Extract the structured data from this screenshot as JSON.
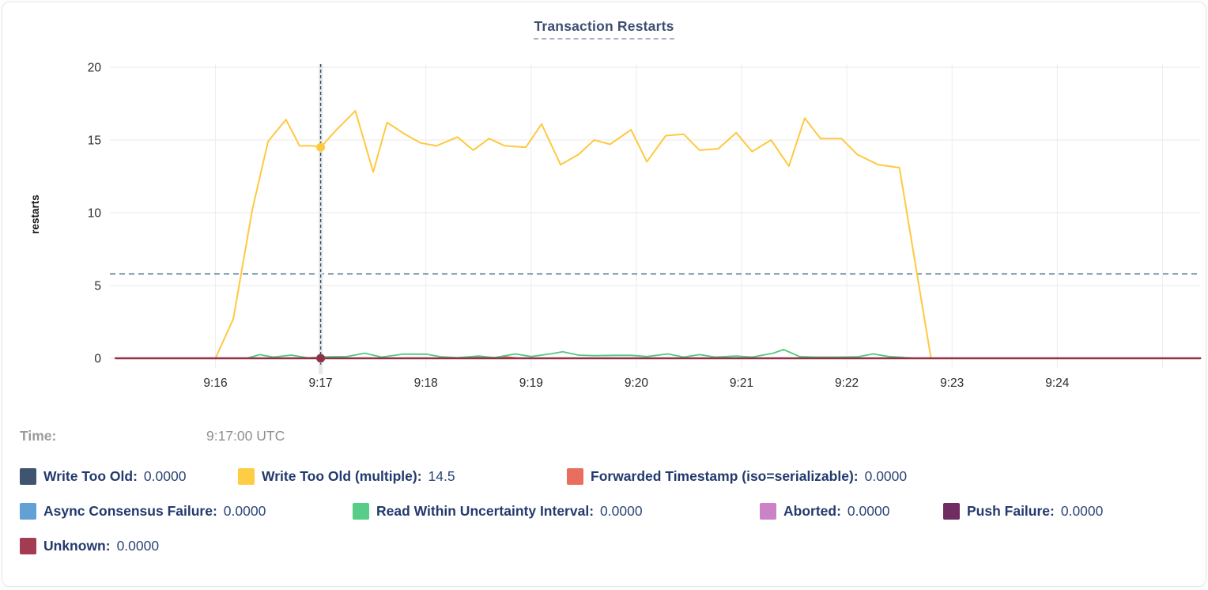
{
  "title": "Transaction Restarts",
  "tooltip": {
    "time_label": "Time:",
    "time_value": "9:17:00 UTC"
  },
  "legend": {
    "rows": [
      [
        {
          "label": "Write Too Old:",
          "value": "0.0000",
          "color": "#3f546e"
        },
        {
          "label": "Write Too Old (multiple):",
          "value": "14.5",
          "color": "#ffcd44"
        },
        {
          "label": "Forwarded Timestamp (iso=serializable):",
          "value": "0.0000",
          "color": "#e96e5e"
        }
      ],
      [
        {
          "label": "Async Consensus Failure:",
          "value": "0.0000",
          "color": "#61a1d6"
        },
        {
          "label": "Read Within Uncertainty Interval:",
          "value": "0.0000",
          "color": "#57cd87"
        },
        {
          "label": "Aborted:",
          "value": "0.0000",
          "color": "#ca83c6"
        },
        {
          "label": "Push Failure:",
          "value": "0.0000",
          "color": "#702d62"
        }
      ],
      [
        {
          "label": "Unknown:",
          "value": "0.0000",
          "color": "#a33b52"
        }
      ]
    ]
  },
  "chart_data": {
    "type": "line",
    "title": "Transaction Restarts",
    "xlabel": "",
    "ylabel": "restarts",
    "ylim": [
      0,
      20
    ],
    "yticks": [
      0,
      5,
      10,
      15,
      20
    ],
    "xticks": [
      "9:16",
      "9:17",
      "9:18",
      "9:19",
      "9:20",
      "9:21",
      "9:22",
      "9:23",
      "9:24"
    ],
    "x_unit": "minutes after 9:16",
    "grid": true,
    "avg_line": 5.8,
    "hover": {
      "time": "9:17:00 UTC",
      "t": 1,
      "dots": [
        {
          "series": "Write Too Old (multiple)",
          "value": 14.5,
          "color": "#ffc93e"
        },
        {
          "series": "Unknown",
          "value": 0,
          "color": "#8e3247"
        }
      ]
    },
    "series": [
      {
        "name": "Write Too Old",
        "color": "#3f546e",
        "points": [
          [
            -0.95,
            0
          ],
          [
            9.36,
            0
          ]
        ]
      },
      {
        "name": "Async Consensus Failure",
        "color": "#61a1d6",
        "points": [
          [
            -0.95,
            0
          ],
          [
            9.36,
            0
          ]
        ]
      },
      {
        "name": "Aborted",
        "color": "#ca83c6",
        "points": [
          [
            -0.95,
            0
          ],
          [
            9.36,
            0
          ]
        ]
      },
      {
        "name": "Push Failure",
        "color": "#702d62",
        "points": [
          [
            -0.95,
            0
          ],
          [
            9.36,
            0
          ]
        ]
      },
      {
        "name": "Forwarded Timestamp (iso=serializable)",
        "color": "#e96e5e",
        "points": [
          [
            -0.95,
            0
          ],
          [
            2.35,
            0
          ],
          [
            2.5,
            0.1
          ],
          [
            2.62,
            0.03
          ],
          [
            2.75,
            0.1
          ],
          [
            2.9,
            0
          ],
          [
            9.36,
            0
          ]
        ]
      },
      {
        "name": "Read Within Uncertainty Interval",
        "color": "#52c981",
        "points": [
          [
            0.3,
            0
          ],
          [
            0.42,
            0.25
          ],
          [
            0.55,
            0.08
          ],
          [
            0.72,
            0.22
          ],
          [
            0.88,
            0.03
          ],
          [
            1.05,
            0.1
          ],
          [
            1.25,
            0.12
          ],
          [
            1.42,
            0.35
          ],
          [
            1.58,
            0.08
          ],
          [
            1.78,
            0.28
          ],
          [
            2.0,
            0.28
          ],
          [
            2.15,
            0.1
          ],
          [
            2.3,
            0.04
          ],
          [
            2.5,
            0.15
          ],
          [
            2.65,
            0.05
          ],
          [
            2.85,
            0.3
          ],
          [
            3.0,
            0.12
          ],
          [
            3.2,
            0.32
          ],
          [
            3.3,
            0.45
          ],
          [
            3.45,
            0.22
          ],
          [
            3.6,
            0.18
          ],
          [
            3.8,
            0.2
          ],
          [
            3.95,
            0.2
          ],
          [
            4.1,
            0.12
          ],
          [
            4.3,
            0.3
          ],
          [
            4.45,
            0.08
          ],
          [
            4.6,
            0.25
          ],
          [
            4.75,
            0.08
          ],
          [
            4.95,
            0.15
          ],
          [
            5.1,
            0.08
          ],
          [
            5.3,
            0.35
          ],
          [
            5.4,
            0.6
          ],
          [
            5.55,
            0.12
          ],
          [
            5.7,
            0.08
          ],
          [
            5.9,
            0.08
          ],
          [
            6.1,
            0.1
          ],
          [
            6.25,
            0.3
          ],
          [
            6.4,
            0.12
          ],
          [
            6.55,
            0.05
          ],
          [
            6.65,
            0
          ]
        ]
      },
      {
        "name": "Write Too Old (multiple)",
        "color": "#ffc93e",
        "points": [
          [
            0,
            0
          ],
          [
            0.17,
            2.7
          ],
          [
            0.35,
            10.2
          ],
          [
            0.5,
            14.9
          ],
          [
            0.67,
            16.4
          ],
          [
            0.8,
            14.6
          ],
          [
            0.92,
            14.6
          ],
          [
            1.0,
            14.5
          ],
          [
            1.15,
            15.7
          ],
          [
            1.33,
            17.0
          ],
          [
            1.5,
            12.8
          ],
          [
            1.63,
            16.2
          ],
          [
            1.8,
            15.4
          ],
          [
            1.95,
            14.8
          ],
          [
            2.1,
            14.6
          ],
          [
            2.3,
            15.2
          ],
          [
            2.45,
            14.3
          ],
          [
            2.6,
            15.1
          ],
          [
            2.75,
            14.6
          ],
          [
            2.95,
            14.5
          ],
          [
            3.1,
            16.1
          ],
          [
            3.28,
            13.3
          ],
          [
            3.45,
            14.0
          ],
          [
            3.6,
            15.0
          ],
          [
            3.75,
            14.7
          ],
          [
            3.95,
            15.7
          ],
          [
            4.1,
            13.5
          ],
          [
            4.28,
            15.3
          ],
          [
            4.45,
            15.4
          ],
          [
            4.6,
            14.3
          ],
          [
            4.78,
            14.4
          ],
          [
            4.95,
            15.5
          ],
          [
            5.1,
            14.2
          ],
          [
            5.28,
            15.0
          ],
          [
            5.45,
            13.2
          ],
          [
            5.6,
            16.5
          ],
          [
            5.75,
            15.1
          ],
          [
            5.95,
            15.1
          ],
          [
            6.1,
            14.0
          ],
          [
            6.3,
            13.3
          ],
          [
            6.5,
            13.1
          ],
          [
            6.8,
            0
          ]
        ]
      },
      {
        "name": "Unknown",
        "color": "#953046",
        "points": [
          [
            -0.95,
            0
          ],
          [
            9.36,
            0
          ]
        ]
      }
    ]
  }
}
